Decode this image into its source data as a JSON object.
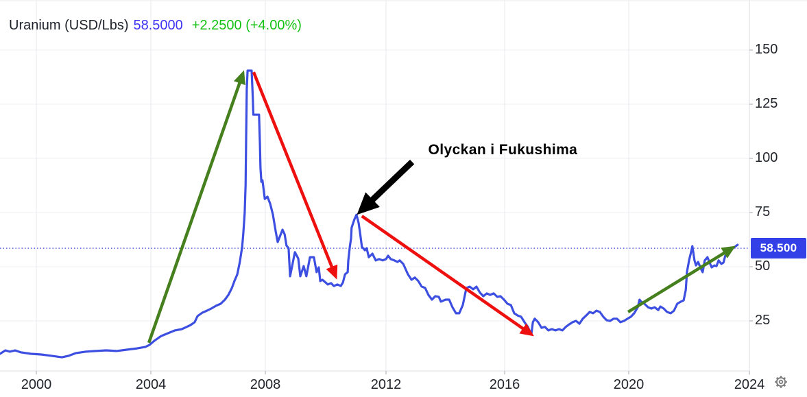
{
  "header": {
    "symbol": "Uranium (USD/Lbs)",
    "last_price": "58.5000",
    "change": "+2.2500 (+4.00%)"
  },
  "price_label": {
    "text": "58.500",
    "value": 58.5
  },
  "colors": {
    "line": "#3d4fe1",
    "dotted_line": "#3b46e0",
    "price_label_bg": "#3340e8",
    "title_price": "#3d33f3",
    "title_change": "#13c113",
    "green_arrow": "#467f1e",
    "red_arrow": "#ee0f0f",
    "black_arrow": "#000000",
    "grid_h": "#edeff1",
    "grid_v": "#e8eaee",
    "axis_separator": "#dcdee2",
    "tick_mark": "#a7a9ad",
    "axis_text": "#22252c",
    "gear": "#7d7d7d"
  },
  "chart_data": {
    "type": "line",
    "title": "Uranium (USD/Lbs)",
    "xlabel": "",
    "ylabel": "USD/Lbs",
    "x_ticks": [
      2000,
      2004,
      2008,
      2012,
      2016,
      2020,
      2024
    ],
    "y_ticks": [
      150,
      125,
      100,
      75,
      50,
      25
    ],
    "x_domain": [
      1998.73,
      2024.0
    ],
    "y_domain": [
      2,
      173
    ],
    "grid": true,
    "legend": false,
    "current_price": 58.5,
    "series": [
      {
        "name": "Uranium (USD/Lbs)",
        "points": [
          [
            1998.73,
            9.8
          ],
          [
            1998.92,
            11.4
          ],
          [
            1999.07,
            10.8
          ],
          [
            1999.26,
            11.4
          ],
          [
            1999.45,
            10.5
          ],
          [
            1999.81,
            9.8
          ],
          [
            2000.17,
            9.5
          ],
          [
            2000.53,
            8.9
          ],
          [
            2000.89,
            8.2
          ],
          [
            2001.13,
            8.9
          ],
          [
            2001.37,
            10.1
          ],
          [
            2001.72,
            10.8
          ],
          [
            2002.08,
            11.1
          ],
          [
            2002.44,
            11.4
          ],
          [
            2002.8,
            11.1
          ],
          [
            2003.16,
            11.7
          ],
          [
            2003.52,
            12.3
          ],
          [
            2003.81,
            13.0
          ],
          [
            2003.95,
            13.9
          ],
          [
            2004.12,
            15.8
          ],
          [
            2004.36,
            18.0
          ],
          [
            2004.6,
            19.3
          ],
          [
            2004.84,
            20.6
          ],
          [
            2005.08,
            21.2
          ],
          [
            2005.25,
            22.2
          ],
          [
            2005.39,
            23.1
          ],
          [
            2005.53,
            24.4
          ],
          [
            2005.63,
            27.2
          ],
          [
            2005.8,
            28.8
          ],
          [
            2005.96,
            29.7
          ],
          [
            2006.11,
            30.7
          ],
          [
            2006.28,
            32.0
          ],
          [
            2006.44,
            32.9
          ],
          [
            2006.59,
            34.8
          ],
          [
            2006.71,
            37.0
          ],
          [
            2006.83,
            40.2
          ],
          [
            2006.92,
            43.4
          ],
          [
            2007.02,
            46.5
          ],
          [
            2007.11,
            52.2
          ],
          [
            2007.19,
            59.2
          ],
          [
            2007.23,
            65.5
          ],
          [
            2007.28,
            75.0
          ],
          [
            2007.31,
            87.7
          ],
          [
            2007.33,
            109.8
          ],
          [
            2007.35,
            131.9
          ],
          [
            2007.38,
            140.5
          ],
          [
            2007.52,
            140.5
          ],
          [
            2007.56,
            128.8
          ],
          [
            2007.58,
            120.2
          ],
          [
            2007.78,
            120.2
          ],
          [
            2007.81,
            106.6
          ],
          [
            2007.83,
            95.6
          ],
          [
            2007.86,
            89.2
          ],
          [
            2007.9,
            89.9
          ],
          [
            2007.98,
            81.3
          ],
          [
            2008.07,
            82.3
          ],
          [
            2008.16,
            79.1
          ],
          [
            2008.25,
            74.1
          ],
          [
            2008.34,
            66.5
          ],
          [
            2008.41,
            61.4
          ],
          [
            2008.57,
            67.1
          ],
          [
            2008.64,
            64.9
          ],
          [
            2008.7,
            59.8
          ],
          [
            2008.77,
            58.5
          ],
          [
            2008.82,
            45.6
          ],
          [
            2008.98,
            56.7
          ],
          [
            2009.09,
            53.8
          ],
          [
            2009.16,
            45.6
          ],
          [
            2009.27,
            50.3
          ],
          [
            2009.36,
            45.6
          ],
          [
            2009.48,
            54.4
          ],
          [
            2009.61,
            54.4
          ],
          [
            2009.7,
            47.5
          ],
          [
            2009.77,
            49.7
          ],
          [
            2009.82,
            43.4
          ],
          [
            2009.89,
            44.0
          ],
          [
            2010.0,
            42.7
          ],
          [
            2010.07,
            41.8
          ],
          [
            2010.18,
            42.4
          ],
          [
            2010.27,
            41.1
          ],
          [
            2010.39,
            41.8
          ],
          [
            2010.5,
            41.1
          ],
          [
            2010.57,
            42.7
          ],
          [
            2010.64,
            46.5
          ],
          [
            2010.73,
            47.5
          ],
          [
            2010.75,
            52.9
          ],
          [
            2010.8,
            59.2
          ],
          [
            2010.84,
            63.0
          ],
          [
            2010.86,
            68.0
          ],
          [
            2010.95,
            71.8
          ],
          [
            2011.02,
            74.0
          ],
          [
            2011.09,
            70.3
          ],
          [
            2011.14,
            65.5
          ],
          [
            2011.2,
            59.2
          ],
          [
            2011.3,
            57.6
          ],
          [
            2011.36,
            58.5
          ],
          [
            2011.43,
            54.4
          ],
          [
            2011.55,
            56.0
          ],
          [
            2011.66,
            52.9
          ],
          [
            2011.77,
            53.5
          ],
          [
            2011.89,
            52.9
          ],
          [
            2012.0,
            53.5
          ],
          [
            2012.07,
            55.1
          ],
          [
            2012.16,
            53.5
          ],
          [
            2012.28,
            52.9
          ],
          [
            2012.39,
            52.2
          ],
          [
            2012.46,
            52.9
          ],
          [
            2012.58,
            51.3
          ],
          [
            2012.74,
            46.5
          ],
          [
            2012.86,
            44.0
          ],
          [
            2012.97,
            45.0
          ],
          [
            2013.09,
            43.4
          ],
          [
            2013.2,
            40.9
          ],
          [
            2013.32,
            40.2
          ],
          [
            2013.43,
            37.0
          ],
          [
            2013.55,
            34.8
          ],
          [
            2013.66,
            36.4
          ],
          [
            2013.78,
            36.1
          ],
          [
            2013.85,
            33.9
          ],
          [
            2014.01,
            34.8
          ],
          [
            2014.13,
            34.8
          ],
          [
            2014.24,
            31.3
          ],
          [
            2014.36,
            28.5
          ],
          [
            2014.47,
            28.5
          ],
          [
            2014.59,
            32.3
          ],
          [
            2014.71,
            40.2
          ],
          [
            2014.82,
            40.8
          ],
          [
            2014.94,
            39.6
          ],
          [
            2015.05,
            40.8
          ],
          [
            2015.17,
            38.0
          ],
          [
            2015.28,
            36.4
          ],
          [
            2015.4,
            37.7
          ],
          [
            2015.51,
            37.0
          ],
          [
            2015.63,
            37.7
          ],
          [
            2015.75,
            36.1
          ],
          [
            2015.86,
            36.4
          ],
          [
            2015.98,
            34.8
          ],
          [
            2016.09,
            32.9
          ],
          [
            2016.2,
            32.3
          ],
          [
            2016.31,
            28.5
          ],
          [
            2016.42,
            27.5
          ],
          [
            2016.53,
            26.9
          ],
          [
            2016.64,
            24.4
          ],
          [
            2016.75,
            22.2
          ],
          [
            2016.86,
            18.7
          ],
          [
            2016.91,
            24.4
          ],
          [
            2016.97,
            26.0
          ],
          [
            2017.08,
            24.4
          ],
          [
            2017.19,
            21.8
          ],
          [
            2017.3,
            22.2
          ],
          [
            2017.41,
            20.6
          ],
          [
            2017.52,
            21.2
          ],
          [
            2017.64,
            20.6
          ],
          [
            2017.75,
            21.2
          ],
          [
            2017.86,
            20.6
          ],
          [
            2017.97,
            22.2
          ],
          [
            2018.08,
            23.4
          ],
          [
            2018.19,
            24.4
          ],
          [
            2018.3,
            25.0
          ],
          [
            2018.41,
            23.7
          ],
          [
            2018.52,
            26.0
          ],
          [
            2018.63,
            27.5
          ],
          [
            2018.74,
            29.1
          ],
          [
            2018.85,
            28.5
          ],
          [
            2018.96,
            29.7
          ],
          [
            2019.07,
            29.1
          ],
          [
            2019.18,
            26.9
          ],
          [
            2019.29,
            25.3
          ],
          [
            2019.4,
            25.0
          ],
          [
            2019.51,
            26.0
          ],
          [
            2019.62,
            26.0
          ],
          [
            2019.73,
            24.4
          ],
          [
            2019.85,
            25.0
          ],
          [
            2019.96,
            26.0
          ],
          [
            2020.07,
            26.9
          ],
          [
            2020.18,
            28.5
          ],
          [
            2020.3,
            31.3
          ],
          [
            2020.36,
            34.8
          ],
          [
            2020.41,
            33.9
          ],
          [
            2020.52,
            32.9
          ],
          [
            2020.64,
            31.3
          ],
          [
            2020.75,
            30.7
          ],
          [
            2020.86,
            31.3
          ],
          [
            2020.98,
            30.0
          ],
          [
            2021.05,
            31.6
          ],
          [
            2021.16,
            30.7
          ],
          [
            2021.27,
            29.1
          ],
          [
            2021.39,
            28.5
          ],
          [
            2021.5,
            29.7
          ],
          [
            2021.61,
            32.9
          ],
          [
            2021.73,
            33.9
          ],
          [
            2021.82,
            34.5
          ],
          [
            2021.89,
            39.3
          ],
          [
            2021.93,
            47.5
          ],
          [
            2022.0,
            52.9
          ],
          [
            2022.07,
            57.0
          ],
          [
            2022.11,
            59.5
          ],
          [
            2022.18,
            52.9
          ],
          [
            2022.23,
            50.6
          ],
          [
            2022.3,
            52.2
          ],
          [
            2022.39,
            49.1
          ],
          [
            2022.45,
            47.5
          ],
          [
            2022.52,
            52.9
          ],
          [
            2022.61,
            54.4
          ],
          [
            2022.68,
            51.9
          ],
          [
            2022.75,
            49.7
          ],
          [
            2022.84,
            50.6
          ],
          [
            2022.91,
            50.3
          ],
          [
            2022.98,
            52.9
          ],
          [
            2023.07,
            51.3
          ],
          [
            2023.14,
            51.9
          ],
          [
            2023.2,
            55.1
          ],
          [
            2023.3,
            56.1
          ],
          [
            2023.36,
            57.0
          ],
          [
            2023.43,
            58.5
          ],
          [
            2023.52,
            59.2
          ],
          [
            2023.61,
            60.1
          ]
        ]
      }
    ],
    "annotations": {
      "label": {
        "text": "Olyckan i Fukushima",
        "year": 2015.94,
        "price": 103.8
      },
      "arrows": [
        {
          "name": "uptrend-arrow-2004-2007",
          "color": "green",
          "from": [
            2003.93,
            14.9
          ],
          "to": [
            2007.21,
            138.9
          ]
        },
        {
          "name": "downtrend-arrow-2007-2010",
          "color": "red",
          "from": [
            2007.59,
            139.8
          ],
          "to": [
            2010.32,
            45.9
          ]
        },
        {
          "name": "downtrend-arrow-2011-2016",
          "color": "red",
          "from": [
            2011.2,
            73.4
          ],
          "to": [
            2016.84,
            19.0
          ]
        },
        {
          "name": "uptrend-arrow-2020-2023",
          "color": "green",
          "from": [
            2019.98,
            29.1
          ],
          "to": [
            2023.43,
            58.6
          ]
        },
        {
          "name": "fukushima-pointer-arrow",
          "color": "black",
          "from": [
            2012.88,
            98.4
          ],
          "to": [
            2011.23,
            76.6
          ]
        }
      ]
    }
  }
}
